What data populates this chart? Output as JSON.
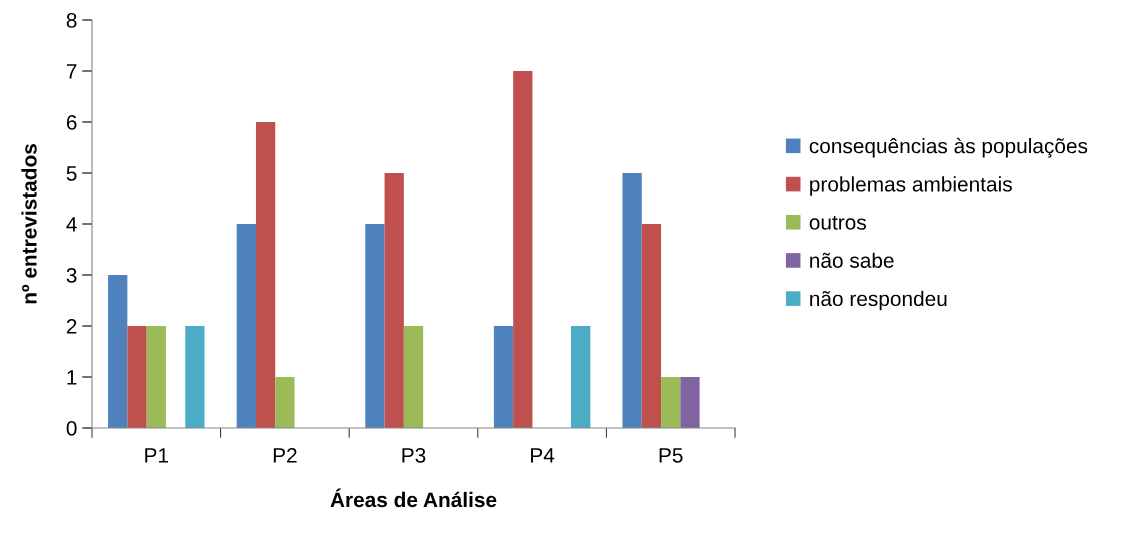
{
  "chart_data": {
    "type": "bar",
    "xlabel": "Áreas de Análise",
    "ylabel": "nº entrevistados",
    "categories": [
      "P1",
      "P2",
      "P3",
      "P4",
      "P5"
    ],
    "series": [
      {
        "name": "consequências às populações",
        "color": "#4f81bd",
        "values": [
          3,
          4,
          4,
          2,
          5
        ]
      },
      {
        "name": "problemas ambientais",
        "color": "#c0504d",
        "values": [
          2,
          6,
          5,
          7,
          4
        ]
      },
      {
        "name": "outros",
        "color": "#9bbb59",
        "values": [
          2,
          1,
          2,
          0,
          1
        ]
      },
      {
        "name": "não sabe",
        "color": "#8064a2",
        "values": [
          0,
          0,
          0,
          0,
          1
        ]
      },
      {
        "name": "não respondeu",
        "color": "#4bacc6",
        "values": [
          2,
          0,
          0,
          2,
          0
        ]
      }
    ],
    "ylim": [
      0,
      8
    ],
    "yticks": [
      0,
      1,
      2,
      3,
      4,
      5,
      6,
      7,
      8
    ],
    "grid": false,
    "legend": "right"
  }
}
